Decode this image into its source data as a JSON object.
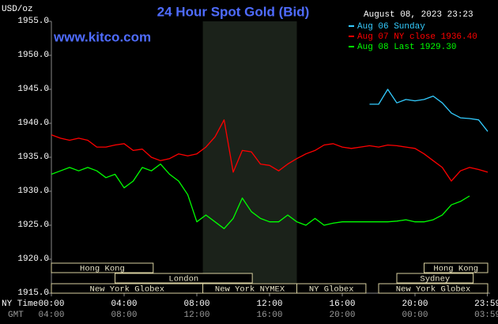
{
  "chart_data": {
    "type": "line",
    "title": "24 Hour Spot Gold (Bid)",
    "y_label": "USD/oz",
    "watermark": "www.kitco.com",
    "timestamp": "August 08, 2023 23:23",
    "x_row_labels": [
      "NY Time",
      "GMT"
    ],
    "xlim": [
      0,
      24
    ],
    "xticks": [
      {
        "value": 0,
        "label": "00:00"
      },
      {
        "value": 4,
        "label": "04:00"
      },
      {
        "value": 8,
        "label": "08:00"
      },
      {
        "value": 12,
        "label": "12:00"
      },
      {
        "value": 16,
        "label": "16:00"
      },
      {
        "value": 20,
        "label": "20:00"
      },
      {
        "value": 23.983,
        "label": "23:59"
      }
    ],
    "x_gmt_labels": [
      "04:00",
      "08:00",
      "12:00",
      "16:00",
      "20:00",
      "00:00",
      "03:59"
    ],
    "ylim": [
      1915,
      1955
    ],
    "yticks": [
      {
        "value": 1955,
        "label": "1955.0"
      },
      {
        "value": 1950,
        "label": "1950.0"
      },
      {
        "value": 1945,
        "label": "1945.0"
      },
      {
        "value": 1940,
        "label": "1940.0"
      },
      {
        "value": 1935,
        "label": "1935.0"
      },
      {
        "value": 1930,
        "label": "1930.0"
      },
      {
        "value": 1925,
        "label": "1925.0"
      },
      {
        "value": 1920,
        "label": "1920.0"
      },
      {
        "value": 1915,
        "label": "1915.0"
      }
    ],
    "sessions": [
      {
        "label": "Hong Kong",
        "start": 0,
        "end": 5.6
      },
      {
        "label": "London",
        "start": 3.5,
        "end": 11.05
      },
      {
        "label": "New York Globex",
        "start": 0,
        "end": 8.33
      },
      {
        "label": "New York NYMEX",
        "start": 8.33,
        "end": 13.5
      },
      {
        "label": "NY Globex",
        "start": 13.5,
        "end": 17.3
      },
      {
        "label": "Hong Kong",
        "start": 20.5,
        "end": 24
      },
      {
        "label": "Sydney",
        "start": 19.0,
        "end": 23.2
      },
      {
        "label": "New York Globex",
        "start": 18.0,
        "end": 24
      }
    ],
    "x": [
      0,
      0.5,
      1,
      1.5,
      2,
      2.5,
      3,
      3.5,
      4,
      4.5,
      5,
      5.5,
      6,
      6.5,
      7,
      7.5,
      8,
      8.5,
      9,
      9.5,
      10,
      10.5,
      11,
      11.5,
      12,
      12.5,
      13,
      13.5,
      14,
      14.5,
      15,
      15.5,
      16,
      16.5,
      17,
      17.5,
      18,
      18.5,
      19,
      19.5,
      20,
      20.5,
      21,
      21.5,
      22,
      22.5,
      23,
      23.5,
      24
    ],
    "series": [
      {
        "name": "Aug 06 Sunday",
        "color": "#33ccff",
        "values": [
          null,
          null,
          null,
          null,
          null,
          null,
          null,
          null,
          null,
          null,
          null,
          null,
          null,
          null,
          null,
          null,
          null,
          null,
          null,
          null,
          null,
          null,
          null,
          null,
          null,
          null,
          null,
          null,
          null,
          null,
          null,
          null,
          null,
          null,
          null,
          1942.8,
          1942.8,
          1945.0,
          1943.0,
          1943.5,
          1943.3,
          1943.5,
          1944.0,
          1943.0,
          1941.5,
          1940.8,
          1940.7,
          1940.5,
          1938.8
        ]
      },
      {
        "name": "Aug 07 NY close 1936.40",
        "color": "#ff0000",
        "values": [
          1938.3,
          1937.8,
          1937.5,
          1937.8,
          1937.5,
          1936.5,
          1936.5,
          1936.8,
          1937.0,
          1936.0,
          1936.2,
          1935.0,
          1934.5,
          1934.8,
          1935.5,
          1935.2,
          1935.5,
          1936.5,
          1938.0,
          1940.5,
          1932.8,
          1936.0,
          1935.8,
          1934.0,
          1933.8,
          1933.0,
          1934.0,
          1934.8,
          1935.5,
          1936.0,
          1936.8,
          1937.0,
          1936.5,
          1936.3,
          1936.5,
          1936.7,
          1936.5,
          1936.8,
          1936.7,
          1936.5,
          1936.3,
          1935.5,
          1934.5,
          1933.5,
          1931.5,
          1933.0,
          1933.5,
          1933.2,
          1932.8
        ]
      },
      {
        "name": "Aug 08 Last 1929.30",
        "color": "#00ff00",
        "values": [
          1932.5,
          1933.0,
          1933.5,
          1933.0,
          1933.5,
          1933.0,
          1932.0,
          1932.5,
          1930.5,
          1931.5,
          1933.5,
          1933.0,
          1934.0,
          1932.5,
          1931.5,
          1929.5,
          1925.5,
          1926.5,
          1925.5,
          1924.5,
          1926.0,
          1929.0,
          1927.0,
          1926.0,
          1925.5,
          1925.5,
          1926.5,
          1925.5,
          1925.0,
          1926.0,
          1925.0,
          1925.3,
          1925.5,
          1925.5,
          1925.5,
          1925.5,
          1925.5,
          1925.5,
          1925.6,
          1925.8,
          1925.5,
          1925.5,
          1925.8,
          1926.5,
          1928.0,
          1928.5,
          1929.3,
          null,
          null
        ]
      }
    ]
  }
}
